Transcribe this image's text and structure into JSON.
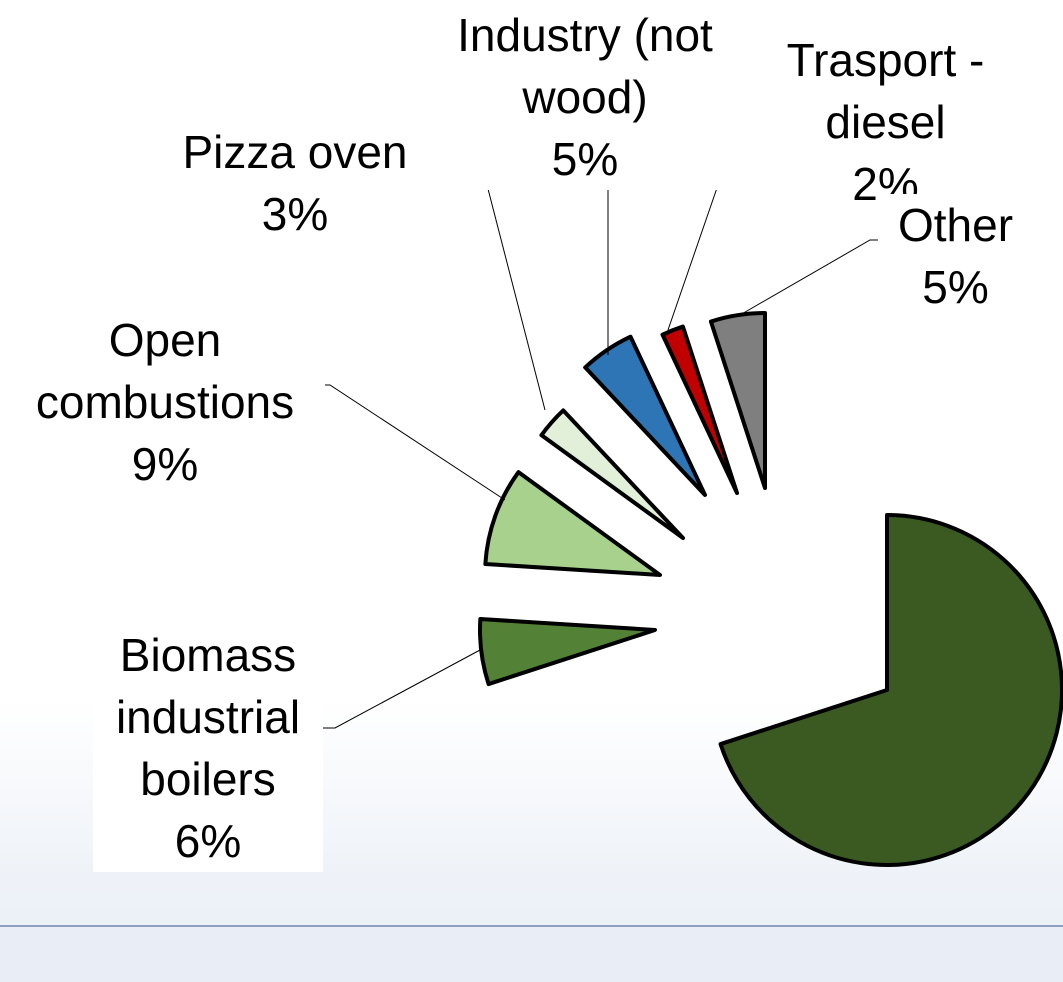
{
  "chart_data": {
    "type": "pie",
    "categories": [
      null,
      "Biomass industrial boilers",
      "Open combustions",
      "Pizza oven",
      "Industry (not wood)",
      "Trasport - diesel",
      "Other"
    ],
    "values": [
      70,
      6,
      9,
      3,
      5,
      2,
      5
    ],
    "value_labels": [
      null,
      "6%",
      "9%",
      "3%",
      "5%",
      "2%",
      "5%"
    ],
    "colors": [
      "#3a5a22",
      "#538135",
      "#a9d18e",
      "#e2f0d9",
      "#2e75b6",
      "#c00000",
      "#7f7f7f"
    ]
  }
}
